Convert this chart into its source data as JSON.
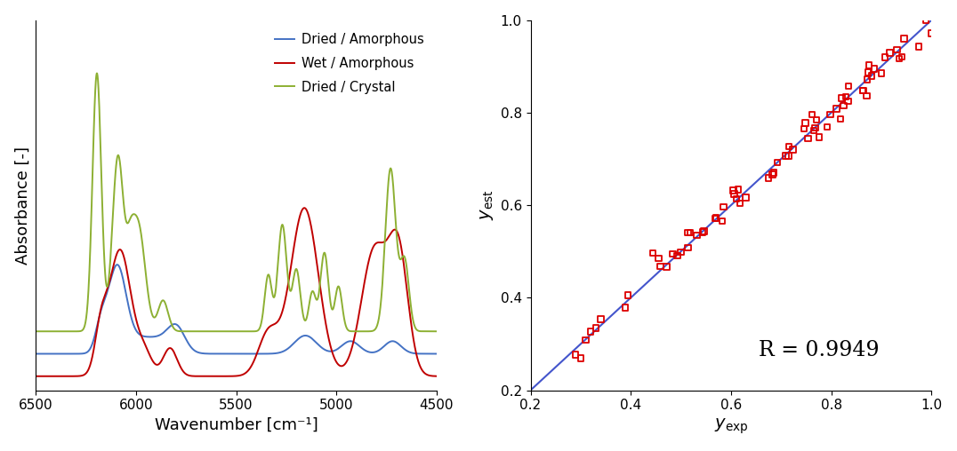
{
  "left_plot": {
    "xlabel": "Wavenumber [cm⁻¹]",
    "ylabel": "Absorbance [-]",
    "xmin": 4500,
    "xmax": 6500,
    "legend": [
      "Dried / Amorphous",
      "Wet / Amorphous",
      "Dried / Crystal"
    ],
    "colors": [
      "#4472C4",
      "#C00000",
      "#8DB033"
    ],
    "line_width": 1.4
  },
  "right_plot": {
    "xlabel": "$y_{\\mathrm{exp}}$",
    "ylabel": "$y_{\\mathrm{est}}$",
    "xmin": 0.2,
    "xmax": 1.0,
    "ymin": 0.2,
    "ymax": 1.0,
    "annotation": "R = 0.9949",
    "scatter_color": "#DD0000",
    "line_color": "#4455CC"
  },
  "background_color": "#FFFFFF"
}
